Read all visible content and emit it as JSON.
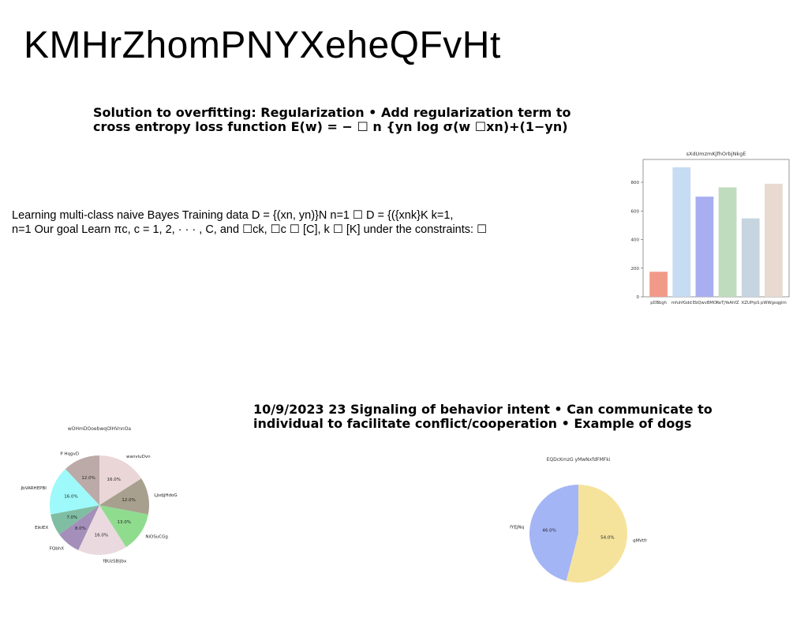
{
  "slide": {
    "title": "KMHrZhomPNYXeheQFvHt"
  },
  "top_text": {
    "line1": "Solution to overfitting: Regularization • Add regularization term to",
    "line2": "cross entropy loss function E(w) = − ☐ n {yn log σ(w ☐xn)+(1−yn)"
  },
  "body_text": {
    "line1": "Learning multi-class naive Bayes Training data D = {(xn, yn)}N n=1 ☐ D = {({xnk}K k=1,",
    "line2": "n=1 Our goal Learn πc, c = 1, 2, · · · , C, and ☐ck, ☐c ☐ [C], k ☐ [K] under the constraints: ☐"
  },
  "bottom_text": {
    "line1": "10/9/2023 23 Signaling of behavior intent • Can communicate to",
    "line2": "individual to facilitate conflict/cooperation • Example of dogs"
  },
  "chart_data": [
    {
      "type": "bar",
      "title": "sXdUmzmKjfhOrbjNkgE",
      "categories": [
        "pDBbgh",
        "mfuhfGdd",
        "EbQwvBMO",
        "ReTjYeAhfZ",
        "KZUPrpS",
        "pWWgsqgIm"
      ],
      "values": [
        175,
        905,
        700,
        765,
        548,
        790
      ],
      "colors": [
        "#f29a88",
        "#c5dcf2",
        "#a8aef0",
        "#bfdcbf",
        "#c7d5e0",
        "#e8dad0"
      ],
      "ylim": [
        0,
        960
      ],
      "yticks": [
        0,
        200,
        400,
        600,
        800
      ],
      "xlabel": "",
      "ylabel": ""
    },
    {
      "type": "pie",
      "title": "wOHmDOoebwqOlHVnnOa",
      "slices": [
        {
          "label": "wanviuDvn",
          "value": 16.0,
          "pct_label": "16.0%",
          "color": "#ead6d6"
        },
        {
          "label": "LJsdjjHdoG",
          "value": 12.0,
          "pct_label": "12.0%",
          "color": "#a8a08e"
        },
        {
          "label": "NiOSuCGg",
          "value": 13.0,
          "pct_label": "13.0%",
          "color": "#8fdc8f"
        },
        {
          "label": "fBUzSBiJbx",
          "value": 16.0,
          "pct_label": "16.0%",
          "color": "#ead9de"
        },
        {
          "label": "FQbhX",
          "value": 8.0,
          "pct_label": "8.0%",
          "color": "#a48fba"
        },
        {
          "label": "EikIEX",
          "value": 7.0,
          "pct_label": "7.0%",
          "color": "#80bea4"
        },
        {
          "label": "JbVARHEPBI",
          "value": 16.0,
          "pct_label": "16.0%",
          "color": "#9ef9fa"
        },
        {
          "label": "P HqgvD",
          "value": 12.0,
          "pct_label": "12.0%",
          "color": "#bcaaa8"
        }
      ]
    },
    {
      "type": "pie",
      "title": "EQDcKmzG yMwNxfdFMFki",
      "slices": [
        {
          "label": "qMVtfr",
          "value": 54.0,
          "pct_label": "54.0%",
          "color": "#f5e39c"
        },
        {
          "label": "fYEJNq",
          "value": 46.0,
          "pct_label": "46.0%",
          "color": "#a4b5f5"
        }
      ]
    }
  ]
}
